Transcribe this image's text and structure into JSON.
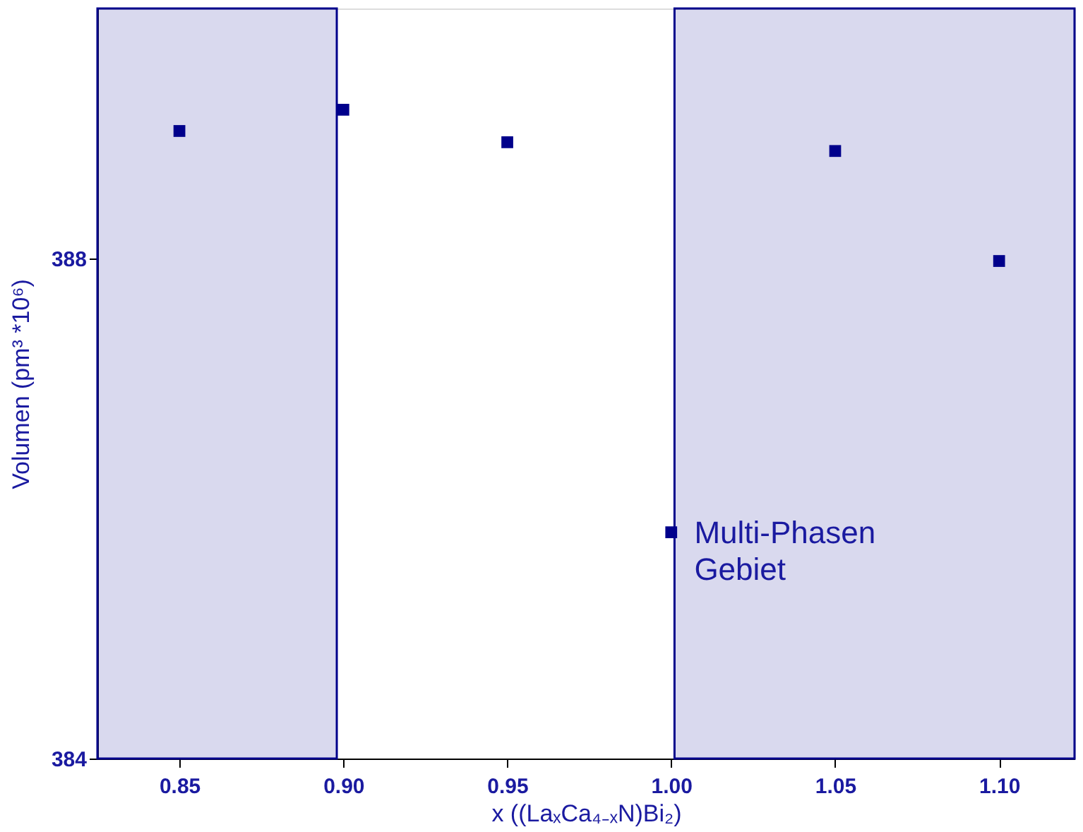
{
  "chart_data": {
    "type": "scatter",
    "xlabel": "x ((LaₓCa₄₋ₓN)Bi₂)",
    "ylabel": "Volumen (pm³ *10⁶)",
    "x": [
      0.85,
      0.9,
      0.95,
      1.0,
      1.05,
      1.1
    ],
    "series": [
      {
        "color": "#00008b",
        "values": [
          389.02,
          389.19,
          388.93,
          385.81,
          388.86,
          387.98
        ]
      }
    ],
    "marker": "square",
    "grid": false,
    "xlim": [
      0.825,
      1.123
    ],
    "ylim": [
      384,
      390
    ],
    "xticks": [
      {
        "value": 0.85,
        "label": "0.85"
      },
      {
        "value": 0.9,
        "label": "0.90"
      },
      {
        "value": 0.95,
        "label": "0.95"
      },
      {
        "value": 1.0,
        "label": "1.00"
      },
      {
        "value": 1.05,
        "label": "1.05"
      },
      {
        "value": 1.1,
        "label": "1.10"
      }
    ],
    "yticks": [
      384,
      388
    ],
    "bands": [
      {
        "axis": "x",
        "from": 0.825,
        "to": 0.898,
        "color": "#00008b"
      },
      {
        "axis": "x",
        "from": 1.001,
        "to": 1.123,
        "color": "#00008b",
        "label": "Multi-Phasen Gebiet"
      }
    ]
  }
}
